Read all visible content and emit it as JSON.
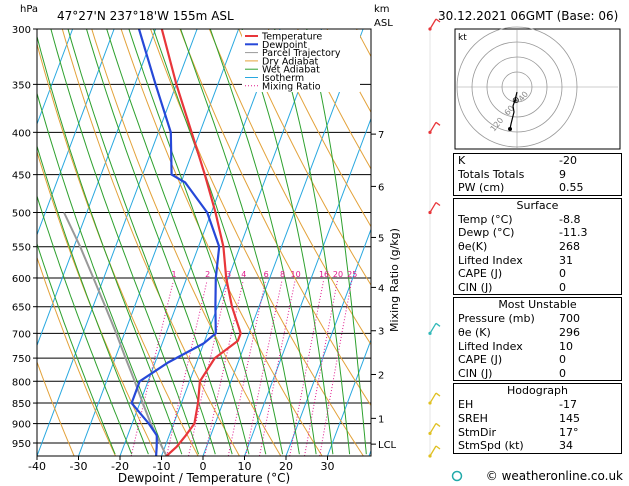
{
  "header": {
    "location": "47°27'N  237°18'W  155m  ASL",
    "datetime": "30.12.2021  06GMT  (Base: 06)",
    "hpa_label": "hPa",
    "km_label": "km",
    "asl_label": "ASL"
  },
  "chart_data": {
    "type": "skew-t",
    "xlabel": "Dewpoint / Temperature (°C)",
    "ylabel_right": "Mixing Ratio (g/kg)",
    "x_ticks": [
      -40,
      -30,
      -20,
      -10,
      0,
      10,
      20,
      30
    ],
    "pressure_ticks": [
      300,
      350,
      400,
      450,
      500,
      550,
      600,
      650,
      700,
      750,
      800,
      850,
      900,
      950
    ],
    "km_ticks": [
      {
        "label": "7",
        "p": 402
      },
      {
        "label": "6",
        "p": 465
      },
      {
        "label": "5",
        "p": 536
      },
      {
        "label": "4",
        "p": 616
      },
      {
        "label": "3",
        "p": 695
      },
      {
        "label": "2",
        "p": 785
      },
      {
        "label": "1",
        "p": 887
      },
      {
        "label": "LCL",
        "p": 953
      }
    ],
    "mixing_ratio_labels": [
      "1",
      "2",
      "3",
      "4",
      "6",
      "8",
      "10",
      "16",
      "20",
      "25"
    ],
    "mixing_ratio_values": [
      1,
      2,
      3,
      4,
      6,
      8,
      10,
      16,
      20,
      25
    ],
    "legend": [
      "Temperature",
      "Dewpoint",
      "Parcel Trajectory",
      "Dry Adiabat",
      "Wet Adiabat",
      "Isotherm",
      "Mixing Ratio"
    ],
    "colors": {
      "temperature": "#e8363a",
      "dewpoint": "#2648d8",
      "parcel": "#999999",
      "dry_adiabat": "#e3a23a",
      "wet_adiabat": "#2ea12e",
      "isotherm": "#28a8e0",
      "mixing_ratio": "#e0188c"
    },
    "temperature": [
      {
        "p": 985,
        "t": -8.8
      },
      {
        "p": 960,
        "t": -7.2
      },
      {
        "p": 930,
        "t": -6.0
      },
      {
        "p": 900,
        "t": -5.0
      },
      {
        "p": 850,
        "t": -6.0
      },
      {
        "p": 800,
        "t": -7.5
      },
      {
        "p": 750,
        "t": -6.0
      },
      {
        "p": 715,
        "t": -2.0
      },
      {
        "p": 700,
        "t": -2.0
      },
      {
        "p": 650,
        "t": -6.5
      },
      {
        "p": 600,
        "t": -10.5
      },
      {
        "p": 550,
        "t": -14.0
      },
      {
        "p": 500,
        "t": -19.0
      },
      {
        "p": 450,
        "t": -25.0
      },
      {
        "p": 400,
        "t": -32.0
      },
      {
        "p": 350,
        "t": -40.0
      },
      {
        "p": 300,
        "t": -48.5
      }
    ],
    "dewpoint": [
      {
        "p": 985,
        "t": -11.3
      },
      {
        "p": 960,
        "t": -12.0
      },
      {
        "p": 930,
        "t": -13.0
      },
      {
        "p": 900,
        "t": -16.0
      },
      {
        "p": 850,
        "t": -22.0
      },
      {
        "p": 800,
        "t": -22.0
      },
      {
        "p": 760,
        "t": -17.0
      },
      {
        "p": 720,
        "t": -10.0
      },
      {
        "p": 700,
        "t": -8.0
      },
      {
        "p": 650,
        "t": -10.5
      },
      {
        "p": 600,
        "t": -13.0
      },
      {
        "p": 550,
        "t": -15.0
      },
      {
        "p": 500,
        "t": -21.0
      },
      {
        "p": 460,
        "t": -29.0
      },
      {
        "p": 450,
        "t": -33.0
      },
      {
        "p": 400,
        "t": -37.0
      },
      {
        "p": 350,
        "t": -45.0
      },
      {
        "p": 300,
        "t": -54.0
      }
    ],
    "parcel": [
      {
        "p": 985,
        "t": -8.8
      },
      {
        "p": 953,
        "t": -11.3
      },
      {
        "p": 900,
        "t": -15.5
      },
      {
        "p": 850,
        "t": -19.3
      },
      {
        "p": 800,
        "t": -23.2
      },
      {
        "p": 750,
        "t": -27.5
      },
      {
        "p": 700,
        "t": -32.0
      },
      {
        "p": 650,
        "t": -37.0
      },
      {
        "p": 600,
        "t": -42.5
      },
      {
        "p": 550,
        "t": -48.5
      },
      {
        "p": 500,
        "t": -55.5
      }
    ],
    "wind_barbs": [
      {
        "p": 300,
        "color": "#e8363a"
      },
      {
        "p": 400,
        "color": "#e8363a"
      },
      {
        "p": 500,
        "color": "#e8363a"
      },
      {
        "p": 700,
        "color": "#30b8b8"
      },
      {
        "p": 850,
        "color": "#e0c020"
      },
      {
        "p": 925,
        "color": "#e0c020"
      },
      {
        "p": 985,
        "color": "#e0c020"
      }
    ]
  },
  "hodograph": {
    "label": "kt",
    "ring_labels": [
      "40",
      "60",
      "120"
    ]
  },
  "indices": [
    {
      "label": "K",
      "value": "-20"
    },
    {
      "label": "Totals Totals",
      "value": "9"
    },
    {
      "label": "PW (cm)",
      "value": "0.55"
    }
  ],
  "surface": {
    "title": "Surface",
    "rows": [
      {
        "label": "Temp (°C)",
        "value": "-8.8"
      },
      {
        "label": "Dewp (°C)",
        "value": "-11.3"
      },
      {
        "label": "θe(K)",
        "value": "268"
      },
      {
        "label": "Lifted Index",
        "value": "31"
      },
      {
        "label": "CAPE (J)",
        "value": "0"
      },
      {
        "label": "CIN (J)",
        "value": "0"
      }
    ]
  },
  "most_unstable": {
    "title": "Most Unstable",
    "rows": [
      {
        "label": "Pressure (mb)",
        "value": "700"
      },
      {
        "label": "θe (K)",
        "value": "296"
      },
      {
        "label": "Lifted Index",
        "value": "10"
      },
      {
        "label": "CAPE (J)",
        "value": "0"
      },
      {
        "label": "CIN (J)",
        "value": "0"
      }
    ]
  },
  "hodo_stats": {
    "title": "Hodograph",
    "rows": [
      {
        "label": "EH",
        "value": "-17"
      },
      {
        "label": "SREH",
        "value": "145"
      },
      {
        "label": "StmDir",
        "value": "17°"
      },
      {
        "label": "StmSpd (kt)",
        "value": "34"
      }
    ]
  },
  "footer": {
    "text": "© weatheronline.co.uk"
  }
}
